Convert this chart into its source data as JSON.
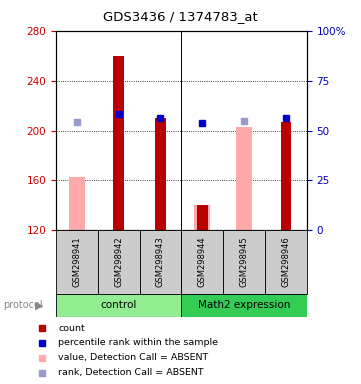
{
  "title": "GDS3436 / 1374783_at",
  "samples": [
    "GSM298941",
    "GSM298942",
    "GSM298943",
    "GSM298944",
    "GSM298945",
    "GSM298946"
  ],
  "ylim_left": [
    120,
    280
  ],
  "ylim_right": [
    0,
    100
  ],
  "yticks_left": [
    120,
    160,
    200,
    240,
    280
  ],
  "yticks_right": [
    0,
    25,
    50,
    75,
    100
  ],
  "red_bars": [
    null,
    260,
    210,
    140,
    null,
    207
  ],
  "pink_bars": [
    163,
    null,
    null,
    140,
    203,
    null
  ],
  "blue_squares_dark": [
    null,
    213,
    210,
    206,
    null,
    210
  ],
  "blue_squares_light": [
    207,
    null,
    null,
    null,
    208,
    null
  ],
  "groups": [
    {
      "label": "control",
      "cols": [
        0,
        1,
        2
      ],
      "color": "#90ee90"
    },
    {
      "label": "Math2 expression",
      "cols": [
        3,
        4,
        5
      ],
      "color": "#33cc55"
    }
  ],
  "dark_red": "#bb0000",
  "pink": "#ffaaaa",
  "dark_blue": "#0000cc",
  "light_blue_sq": "#9999cc",
  "bg_gray": "#cccccc",
  "left_axis_color": "#cc0000",
  "right_axis_color": "#0000bb",
  "legend_items": [
    {
      "color": "#bb0000",
      "label": "count"
    },
    {
      "color": "#0000cc",
      "label": "percentile rank within the sample"
    },
    {
      "color": "#ffaaaa",
      "label": "value, Detection Call = ABSENT"
    },
    {
      "color": "#9999cc",
      "label": "rank, Detection Call = ABSENT"
    }
  ]
}
